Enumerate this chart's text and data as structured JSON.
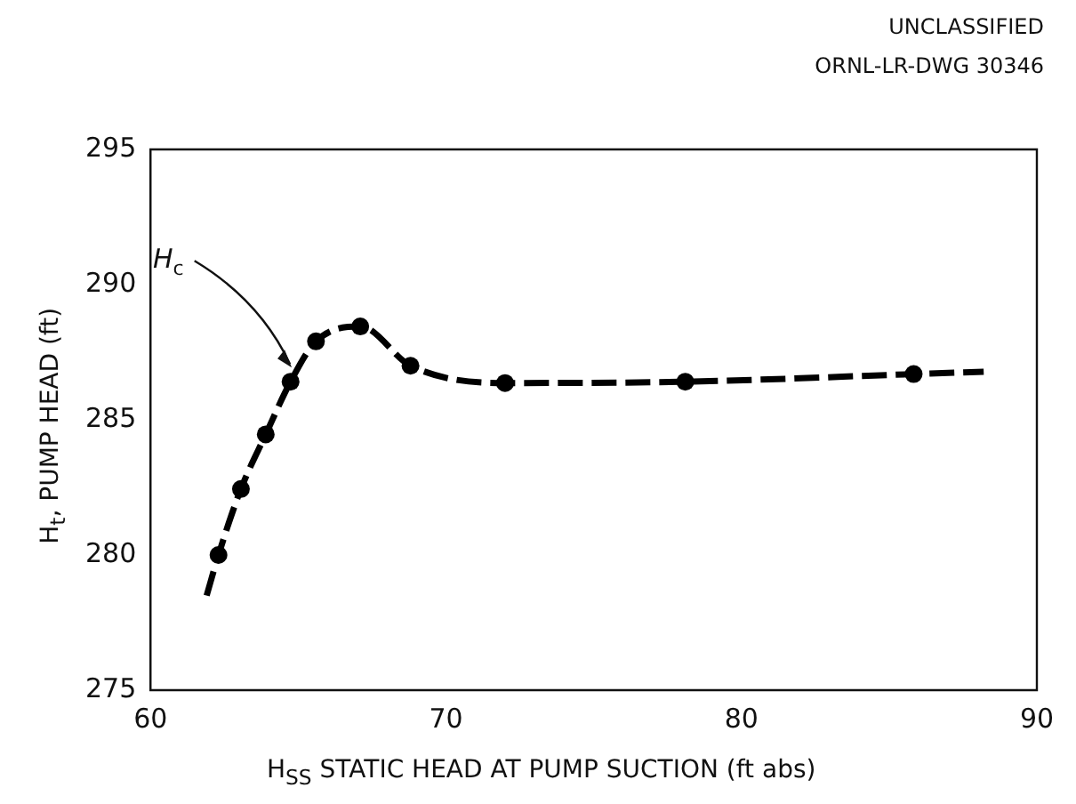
{
  "chart_data": {
    "type": "line",
    "xlabel": "H$_{SS}$  STATIC HEAD AT PUMP SUCTION (ft abs)",
    "ylabel": "H$_{t}$, PUMP HEAD (ft)",
    "xlim": [
      60,
      90
    ],
    "xticks": [
      60,
      70,
      80,
      90
    ],
    "ylim": [
      275,
      295
    ],
    "yticks": [
      275,
      280,
      285,
      290,
      295
    ],
    "grid": false,
    "legend": false,
    "series": [
      {
        "color": "#000000",
        "marker": "none",
        "line_style": "dashed",
        "x": [
          61.9,
          62.3,
          63.06,
          63.9,
          64.74,
          65.6,
          67.1,
          68.8,
          72.0,
          78.1,
          85.83,
          88.2
        ],
        "values": [
          278.5,
          280.0,
          282.44,
          284.46,
          286.41,
          287.9,
          288.45,
          287.0,
          286.36,
          286.41,
          286.69,
          286.78
        ]
      },
      {
        "type": "scatter",
        "color": "#000000",
        "marker": "circle",
        "x": [
          62.3,
          63.06,
          63.9,
          64.74,
          65.6,
          67.1,
          68.8,
          72.0,
          78.1,
          85.83
        ],
        "values": [
          280.0,
          282.44,
          284.46,
          286.41,
          287.9,
          288.45,
          287.0,
          286.36,
          286.41,
          286.69
        ]
      }
    ],
    "annotations": [
      "UNCLASSIFIED",
      "ORNL-LR-DWG 30346",
      {
        "text": "H$_{c}$",
        "x": 64.9,
        "y": 286.8
      }
    ]
  }
}
